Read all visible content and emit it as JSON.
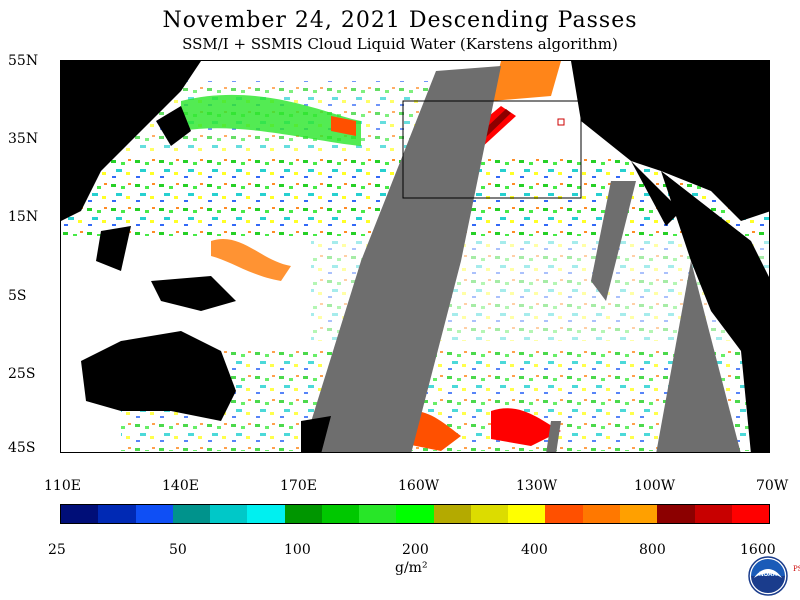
{
  "header": {
    "title": "November 24, 2021   Descending Passes",
    "subtitle": "SSM/I + SSMIS Cloud Liquid Water (Karstens algorithm)"
  },
  "map": {
    "lat_labels": [
      "55N",
      "35N",
      "15N",
      "5S",
      "25S",
      "45S"
    ],
    "lon_labels": [
      "110E",
      "140E",
      "170E",
      "160W",
      "130W",
      "100W",
      "70W"
    ],
    "colors": {
      "land": "#000000",
      "no_data_swath_gap": "#6e6e6e",
      "clear": "#ffffff"
    }
  },
  "colorbar": {
    "colors": [
      "#000e78",
      "#0029b4",
      "#0f4ff5",
      "#00938c",
      "#00c8c8",
      "#00f0f0",
      "#009600",
      "#00c800",
      "#28e628",
      "#00ff00",
      "#b4aa00",
      "#dcdc00",
      "#ffff00",
      "#ff5000",
      "#ff7800",
      "#ffa000",
      "#8c0000",
      "#c80000",
      "#ff0000"
    ],
    "tick_labels": [
      "25",
      "50",
      "100",
      "200",
      "400",
      "800",
      "1600"
    ],
    "unit": "g/m²"
  },
  "logo": {
    "icon": "noaa-logo-icon",
    "text": "NOAA",
    "side_text": "PSL"
  }
}
